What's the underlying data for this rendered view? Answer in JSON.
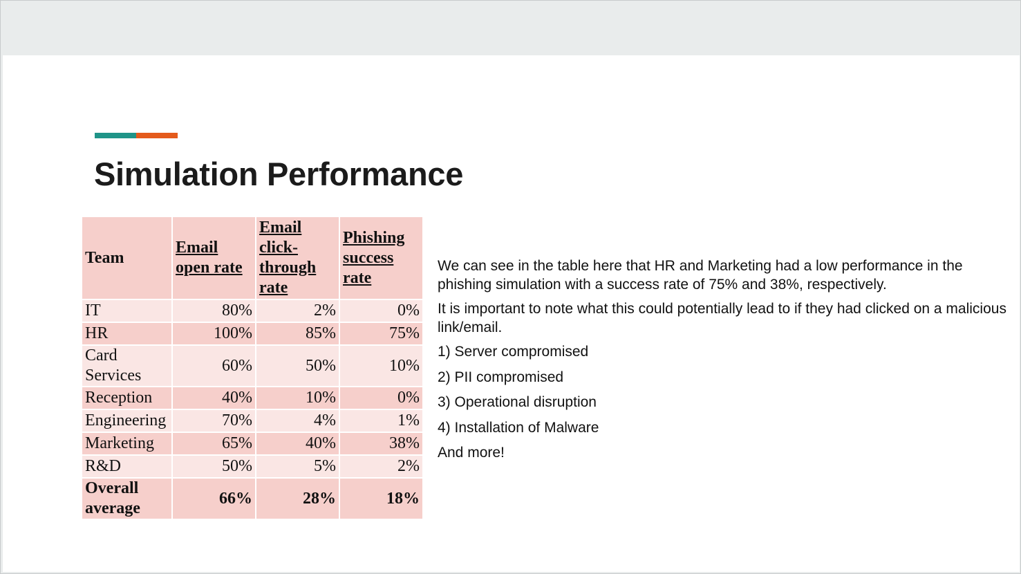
{
  "colors": {
    "accent_teal": "#1f9488",
    "accent_orange": "#e45a1b",
    "header_fill": "#f6cfcb",
    "row_dark": "#f6cfcb",
    "row_light": "#fae6e4"
  },
  "slide": {
    "title": "Simulation Performance"
  },
  "table": {
    "headers": [
      "Team",
      "Email open rate",
      "Email click-through rate",
      "Phishing success rate"
    ],
    "rows": [
      {
        "team": "IT",
        "open": "80%",
        "click": "2%",
        "phish": "0%"
      },
      {
        "team": "HR",
        "open": "100%",
        "click": "85%",
        "phish": "75%"
      },
      {
        "team": "Card Services",
        "open": "60%",
        "click": "50%",
        "phish": "10%"
      },
      {
        "team": "Reception",
        "open": "40%",
        "click": "10%",
        "phish": "0%"
      },
      {
        "team": "Engineering",
        "open": "70%",
        "click": "4%",
        "phish": "1%"
      },
      {
        "team": "Marketing",
        "open": "65%",
        "click": "40%",
        "phish": "38%"
      },
      {
        "team": "R&D",
        "open": "50%",
        "click": "5%",
        "phish": "2%"
      }
    ],
    "total": {
      "team": "Overall average",
      "open": "66%",
      "click": "28%",
      "phish": "18%"
    }
  },
  "text": {
    "para1": "We can see in the table here that HR and Marketing had a low performance in the phishing simulation with a success rate of 75% and 38%, respectively.",
    "para2": "It is important to note what this could potentially lead to if they had clicked on a malicious link/email.",
    "list": [
      "1) Server compromised",
      "2) PII compromised",
      "3) Operational disruption",
      "4) Installation of Malware"
    ],
    "closing": "And more!"
  }
}
